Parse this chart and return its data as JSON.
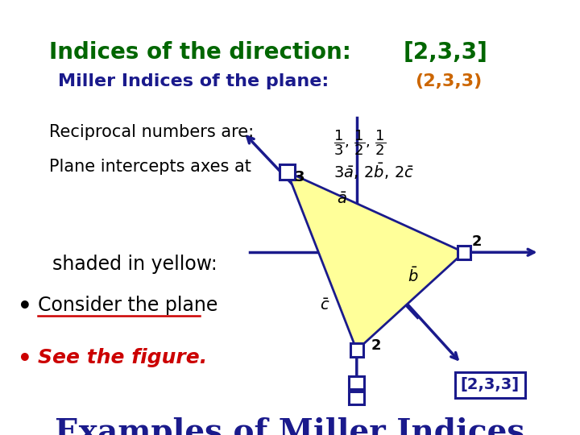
{
  "title": "Examples of Miller Indices",
  "title_color": "#1a1a8c",
  "title_fontsize": 28,
  "bg_color": "#ffffff",
  "dark_blue": "#1a1a8c",
  "red": "#cc0000",
  "orange": "#cc6600",
  "green": "#006600",
  "yellow_fill": "#ffff99",
  "label_233": "[2,3,3]",
  "miller_plane_label": "Miller Indices of the plane:",
  "miller_plane_val": "(2,3,3)",
  "miller_direction_label": "Indices of the direction:",
  "miller_direction_val": "[2,3,3]"
}
